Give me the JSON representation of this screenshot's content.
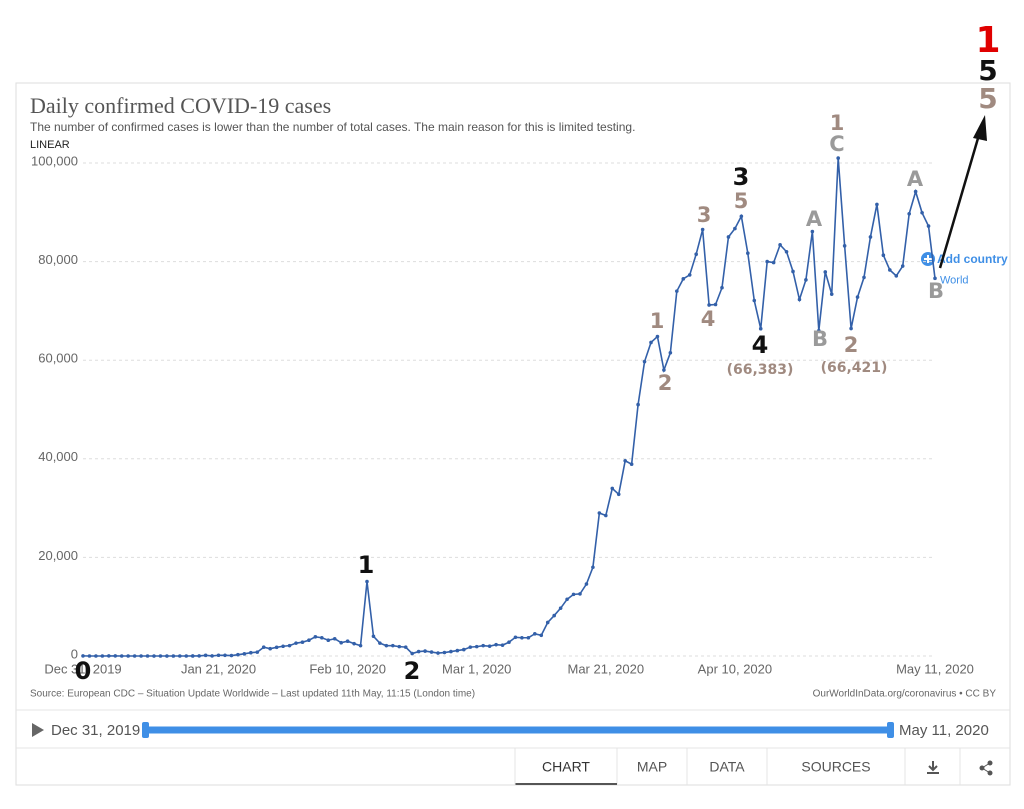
{
  "chart_data": {
    "type": "line",
    "title": "Daily confirmed COVID-19 cases",
    "subtitle": "The number of confirmed cases is lower than the number of total cases. The main reason for this is limited testing.",
    "scale_label": "LINEAR",
    "log_scale": false,
    "grid": true,
    "color": "#3360a9",
    "categories": [
      "Dec 31, 2019",
      null,
      null,
      null,
      null,
      null,
      null,
      null,
      null,
      null,
      null,
      null,
      null,
      null,
      null,
      null,
      null,
      null,
      null,
      null,
      null,
      "Jan 21, 2020",
      null,
      null,
      null,
      null,
      null,
      null,
      null,
      null,
      null,
      null,
      null,
      null,
      null,
      null,
      null,
      null,
      null,
      null,
      null,
      "Feb 10, 2020",
      null,
      null,
      null,
      null,
      null,
      null,
      null,
      null,
      null,
      null,
      null,
      null,
      null,
      null,
      null,
      null,
      null,
      null,
      null,
      "Mar 1, 2020",
      null,
      null,
      null,
      null,
      null,
      null,
      null,
      null,
      null,
      null,
      null,
      null,
      null,
      null,
      null,
      null,
      null,
      null,
      null,
      "Mar 21, 2020",
      null,
      null,
      null,
      null,
      null,
      null,
      null,
      null,
      null,
      null,
      null,
      null,
      null,
      null,
      null,
      null,
      null,
      null,
      null,
      "Apr 10, 2020",
      null,
      null,
      null,
      null,
      null,
      null,
      null,
      null,
      null,
      null,
      null,
      null,
      null,
      null,
      null,
      null,
      null,
      null,
      null,
      null,
      null,
      null,
      null,
      null,
      null,
      null,
      null,
      null,
      null,
      null,
      "May 11, 2020"
    ],
    "series": [
      {
        "name": "World",
        "color": "#3360a9",
        "values": [
          27,
          0,
          0,
          0,
          17,
          15,
          0,
          0,
          0,
          0,
          0,
          1,
          0,
          1,
          1,
          0,
          0,
          4,
          17,
          136,
          19,
          151,
          140,
          97,
          259,
          441,
          665,
          787,
          1778,
          1480,
          1755,
          1979,
          2100,
          2600,
          2800,
          3200,
          3900,
          3700,
          3200,
          3500,
          2700,
          3000,
          2500,
          2100,
          15100,
          4000,
          2600,
          2100,
          2100,
          1900,
          1800,
          500,
          900,
          1000,
          800,
          600,
          700,
          900,
          1100,
          1300,
          1800,
          1900,
          2100,
          2000,
          2300,
          2200,
          2800,
          3800,
          3700,
          3700,
          4500,
          4200,
          6800,
          8200,
          9700,
          11500,
          12500,
          12600,
          14600,
          18000,
          29000,
          28500,
          34000,
          32800,
          39600,
          38900,
          51000,
          59700,
          63600,
          64800,
          58000,
          61500,
          74000,
          76500,
          77300,
          81500,
          86500,
          71200,
          71300,
          74700,
          85000,
          86700,
          89200,
          81700,
          72100,
          66383,
          80000,
          79800,
          83400,
          82000,
          78000,
          72300,
          76300,
          86100,
          66000,
          77900,
          73400,
          101000,
          83200,
          66421,
          72800,
          76800,
          85000,
          91600,
          81300,
          78300,
          77100,
          79100,
          89700,
          94200,
          89900,
          87200,
          76600
        ]
      }
    ],
    "ylim": [
      0,
      100000
    ],
    "yticks": [
      0,
      {
        "value": 20000,
        "label": "20,000"
      },
      {
        "value": 40000,
        "label": "40,000"
      },
      {
        "value": 60000,
        "label": "60,000"
      },
      {
        "value": 80000,
        "label": "80,000"
      },
      {
        "value": 100000,
        "label": "100,000"
      }
    ],
    "add_country": "Add country",
    "annotations": [
      {
        "text": "0",
        "color": "#111111"
      },
      {
        "text": "1",
        "color": "#111111"
      },
      {
        "text": "2",
        "color": "#111111"
      },
      {
        "text": "1",
        "color": "#a08a80"
      },
      {
        "text": "2",
        "color": "#a08a80"
      },
      {
        "text": "3",
        "color": "#a08a80"
      },
      {
        "text": "4",
        "color": "#a08a80"
      },
      {
        "text": "3",
        "color": "#111111"
      },
      {
        "text": "5",
        "color": "#a08a80"
      },
      {
        "text": "4",
        "color": "#111111"
      },
      {
        "text": "(66,383)",
        "color": "#a08a80"
      },
      {
        "text": "A",
        "color": "#9a9a9a"
      },
      {
        "text": "B",
        "color": "#9a9a9a"
      },
      {
        "text": "1",
        "color": "#a08a80"
      },
      {
        "text": "C",
        "color": "#9a9a9a"
      },
      {
        "text": "2",
        "color": "#a08a80"
      },
      {
        "text": "(66,421)",
        "color": "#a08a80"
      },
      {
        "text": "A",
        "color": "#9a9a9a"
      },
      {
        "text": "B",
        "color": "#9a9a9a"
      },
      {
        "text": "1",
        "color": "#e00000"
      },
      {
        "text": "5",
        "color": "#111111"
      },
      {
        "text": "5",
        "color": "#a08a80"
      }
    ],
    "source": "Source: European CDC – Situation Update Worldwide – Last updated 11th May, 11:15 (London time)",
    "credit": "OurWorldInData.org/coronavirus • CC BY",
    "timeline": {
      "start": "Dec 31, 2019",
      "end": "May 11, 2020"
    },
    "tabs": [
      "CHART",
      "MAP",
      "DATA",
      "SOURCES"
    ]
  }
}
